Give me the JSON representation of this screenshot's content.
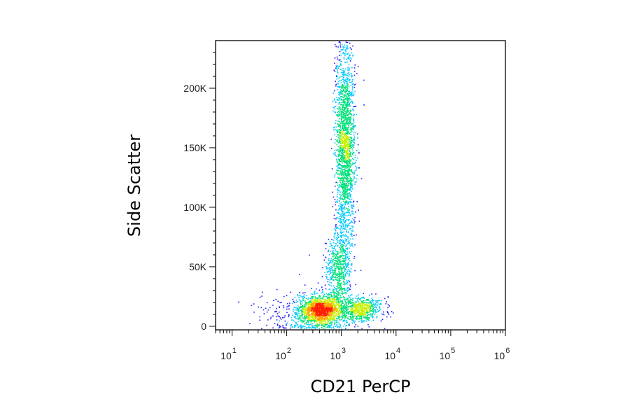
{
  "chart_data": {
    "type": "scatter",
    "subtype": "flow-cytometry-density-dot-plot",
    "title": "",
    "xlabel": "CD21 PerCP",
    "ylabel": "Side Scatter",
    "x_scale": "log",
    "xlim": [
      5,
      1000000
    ],
    "ylim": [
      -3000,
      240000
    ],
    "grid": false,
    "legend": "none",
    "density_colors": [
      "#1a1aff",
      "#00c8ff",
      "#00e07a",
      "#c8f000",
      "#ffa000",
      "#ff2000"
    ],
    "x_ticks": [
      {
        "base": "10",
        "exp": "1",
        "value": 10
      },
      {
        "base": "10",
        "exp": "2",
        "value": 100
      },
      {
        "base": "10",
        "exp": "3",
        "value": 1000
      },
      {
        "base": "10",
        "exp": "4",
        "value": 10000
      },
      {
        "base": "10",
        "exp": "5",
        "value": 100000
      },
      {
        "base": "10",
        "exp": "6",
        "value": 1000000
      }
    ],
    "y_ticks": [
      {
        "label": "0",
        "value": 0
      },
      {
        "label": "50K",
        "value": 50000
      },
      {
        "label": "100K",
        "value": 100000
      },
      {
        "label": "150K",
        "value": 150000
      },
      {
        "label": "200K",
        "value": 200000
      }
    ],
    "populations": [
      {
        "x_center": 400,
        "y_center": 14000,
        "x_sd_log": 0.18,
        "y_sd": 6000,
        "weight": 0.26
      },
      {
        "x_center": 1150,
        "y_center": 150000,
        "x_sd_log": 0.09,
        "y_sd": 45000,
        "weight": 0.4
      },
      {
        "x_center": 850,
        "y_center": 48000,
        "x_sd_log": 0.11,
        "y_sd": 16000,
        "weight": 0.12
      },
      {
        "x_center": 2200,
        "y_center": 15000,
        "x_sd_log": 0.2,
        "y_sd": 5000,
        "weight": 0.12
      },
      {
        "x_center": 300,
        "y_center": 10000,
        "x_sd_log": 0.45,
        "y_sd": 9000,
        "weight": 0.1
      }
    ]
  }
}
